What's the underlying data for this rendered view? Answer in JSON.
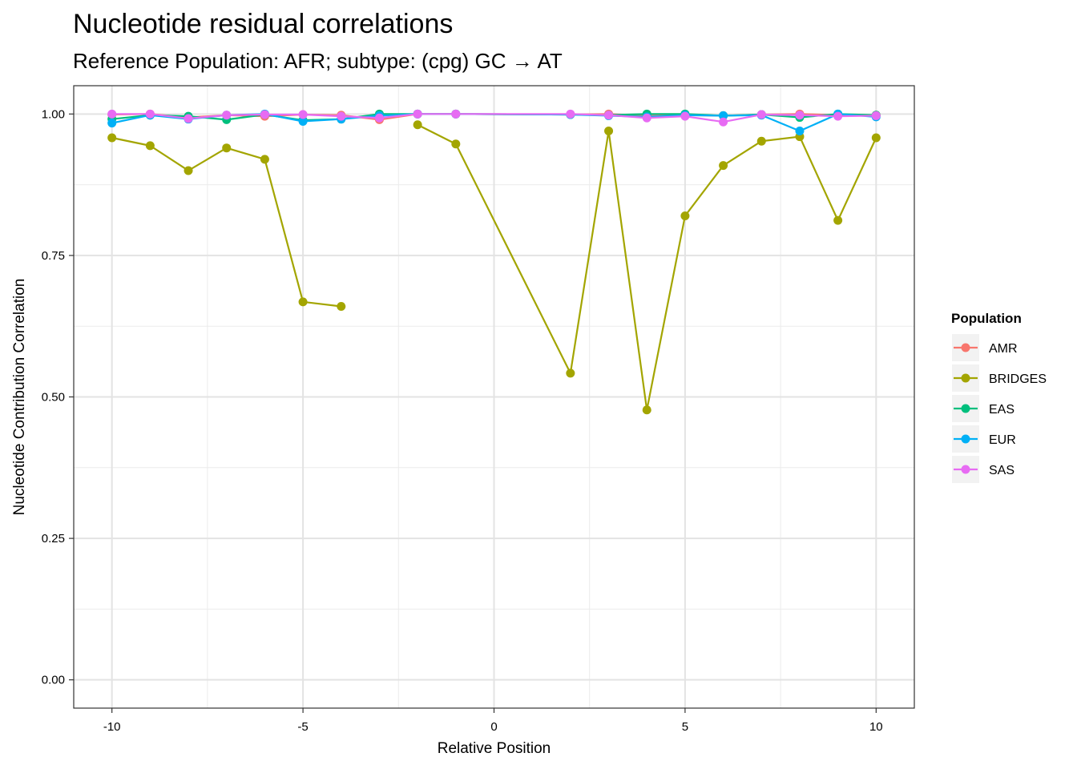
{
  "chart_data": {
    "type": "line",
    "title": "Nucleotide residual correlations",
    "subtitle": "Reference Population: AFR; subtype: (cpg) GC → AT",
    "xlabel": "Relative Position",
    "ylabel": "Nucleotide Contribution Correlation",
    "xlim": [
      -11,
      11
    ],
    "ylim": [
      -0.05,
      1.05
    ],
    "x_ticks": [
      -10,
      -5,
      0,
      5,
      10
    ],
    "x_tick_labels": [
      "-10",
      "-5",
      "0",
      "5",
      "10"
    ],
    "y_ticks": [
      0,
      0.25,
      0.5,
      0.75,
      1
    ],
    "y_tick_labels": [
      "0.00",
      "0.25",
      "0.50",
      "0.75",
      "1.00"
    ],
    "grid": true,
    "legend_title": "Population",
    "legend_position": "right",
    "series": [
      {
        "name": "AMR",
        "color": "#F8766D",
        "x": [
          -10,
          -9,
          -8,
          -7,
          -6,
          -5,
          -4,
          -3,
          -2,
          -1,
          2,
          3,
          4,
          5,
          6,
          7,
          8,
          9,
          10
        ],
        "y": [
          0.999,
          1.0,
          0.994,
          0.998,
          0.996,
          0.999,
          0.998,
          0.99,
          1.0,
          1.0,
          0.999,
          1.0,
          0.997,
          0.998,
          0.997,
          0.999,
          1.0,
          0.998,
          0.998
        ]
      },
      {
        "name": "BRIDGES",
        "color": "#A3A500",
        "x": [
          -10,
          -9,
          -8,
          -7,
          -6,
          -5,
          -4,
          null,
          -2,
          -1,
          2,
          3,
          4,
          5,
          6,
          7,
          8,
          9,
          10
        ],
        "y": [
          0.958,
          0.944,
          0.9,
          0.94,
          0.92,
          0.668,
          0.66,
          null,
          0.981,
          0.947,
          0.542,
          0.97,
          0.477,
          0.82,
          0.909,
          0.952,
          0.96,
          0.812,
          0.958
        ]
      },
      {
        "name": "EAS",
        "color": "#00BF7D",
        "x": [
          -10,
          -9,
          -8,
          -7,
          -6,
          -5,
          -4,
          -3,
          -2,
          -1,
          2,
          3,
          4,
          5,
          6,
          7,
          8,
          9,
          10
        ],
        "y": [
          0.991,
          0.998,
          0.996,
          0.99,
          0.999,
          0.989,
          0.991,
          1.0,
          1.0,
          1.0,
          0.999,
          0.998,
          1.0,
          1.0,
          0.997,
          0.999,
          0.994,
          1.0,
          0.998
        ]
      },
      {
        "name": "EUR",
        "color": "#00B0F6",
        "x": [
          -10,
          -9,
          -8,
          -7,
          -6,
          -5,
          -4,
          -3,
          -2,
          -1,
          2,
          3,
          4,
          5,
          6,
          7,
          8,
          9,
          10
        ],
        "y": [
          0.984,
          0.998,
          0.991,
          0.998,
          1.0,
          0.987,
          0.991,
          0.997,
          1.0,
          1.0,
          0.999,
          0.997,
          0.995,
          0.998,
          0.997,
          0.998,
          0.97,
          1.0,
          0.995
        ]
      },
      {
        "name": "SAS",
        "color": "#E76BF3",
        "x": [
          -10,
          -9,
          -8,
          -7,
          -6,
          -5,
          -4,
          -3,
          -2,
          -1,
          2,
          3,
          4,
          5,
          6,
          7,
          8,
          9,
          10
        ],
        "y": [
          1.0,
          1.0,
          0.992,
          0.998,
          0.999,
          0.999,
          0.996,
          0.993,
          1.0,
          1.0,
          1.0,
          0.998,
          0.993,
          0.996,
          0.986,
          0.999,
          0.998,
          0.996,
          0.997
        ]
      }
    ]
  }
}
